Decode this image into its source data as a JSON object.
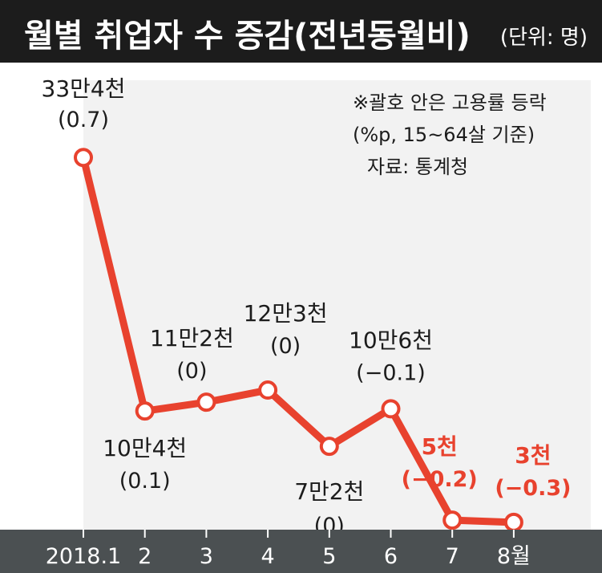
{
  "title": "월별 취업자 수 증감(전년동월비)",
  "unit": "(단위: 명)",
  "notes": {
    "line1": "※괄호 안은 고용률 등락",
    "line2": "(%p, 15~64살 기준)",
    "source": "자료: 통계청"
  },
  "colors": {
    "line": "#e8422e",
    "highlight_text": "#e8422e",
    "axis_bar": "#4b5052",
    "plot_bg": "#f2f2f2",
    "title_bg": "#1c1c1c"
  },
  "chart_data": {
    "type": "line",
    "x": [
      "2018.1",
      "2",
      "3",
      "4",
      "5",
      "6",
      "7",
      "8월"
    ],
    "values": [
      334000,
      104000,
      112000,
      123000,
      72000,
      106000,
      5000,
      3000
    ],
    "value_labels": [
      "33만4천",
      "10만4천",
      "11만2천",
      "12만3천",
      "7만2천",
      "10만6천",
      "5천",
      "3천"
    ],
    "sub_labels": [
      "(0.7)",
      "(0.1)",
      "(0)",
      "(0)",
      "(0)",
      "(−0.1)",
      "(−0.2)",
      "(−0.3)"
    ],
    "highlighted": [
      false,
      false,
      false,
      false,
      false,
      false,
      true,
      true
    ],
    "ylim": [
      0,
      340000
    ],
    "grid": false,
    "legend": "none"
  }
}
